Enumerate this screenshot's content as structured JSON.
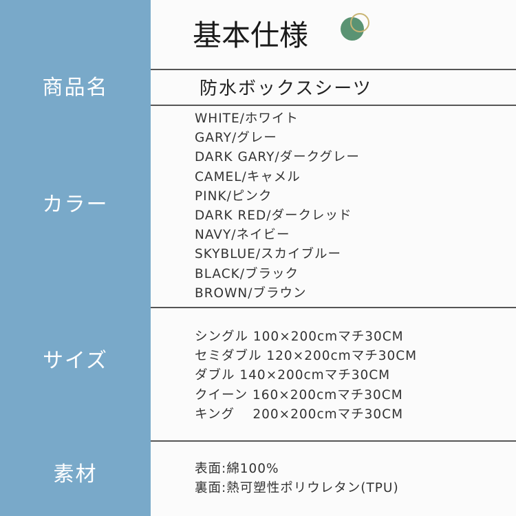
{
  "title": "基本仕様",
  "accent_color": "#79a9c9",
  "logo": {
    "fill_color": "#5a9373",
    "ring_color": "#c9b574"
  },
  "rows": [
    {
      "label": "商品名",
      "values": [
        "防水ボックスシーツ"
      ]
    },
    {
      "label": "カラー",
      "values": [
        "WHITE/ホワイト",
        "GARY/グレー",
        "DARK GARY/ダークグレー",
        "CAMEL/キャメル",
        "PINK/ピンク",
        "DARK RED/ダークレッド",
        "NAVY/ネイビー",
        "SKYBLUE/スカイブルー",
        "BLACK/ブラック",
        "BROWN/ブラウン"
      ]
    },
    {
      "label": "サイズ",
      "values": [
        "シングル 100×200cmマチ30CM",
        "セミダブル 120×200cmマチ30CM",
        "ダブル 140×200cmマチ30CM",
        "クイーン 160×200cmマチ30CM",
        "キング　 200×200cmマチ30CM"
      ]
    },
    {
      "label": "素材",
      "values": [
        "表面:綿100%",
        "裏面:熱可塑性ポリウレタン(TPU)"
      ]
    }
  ]
}
